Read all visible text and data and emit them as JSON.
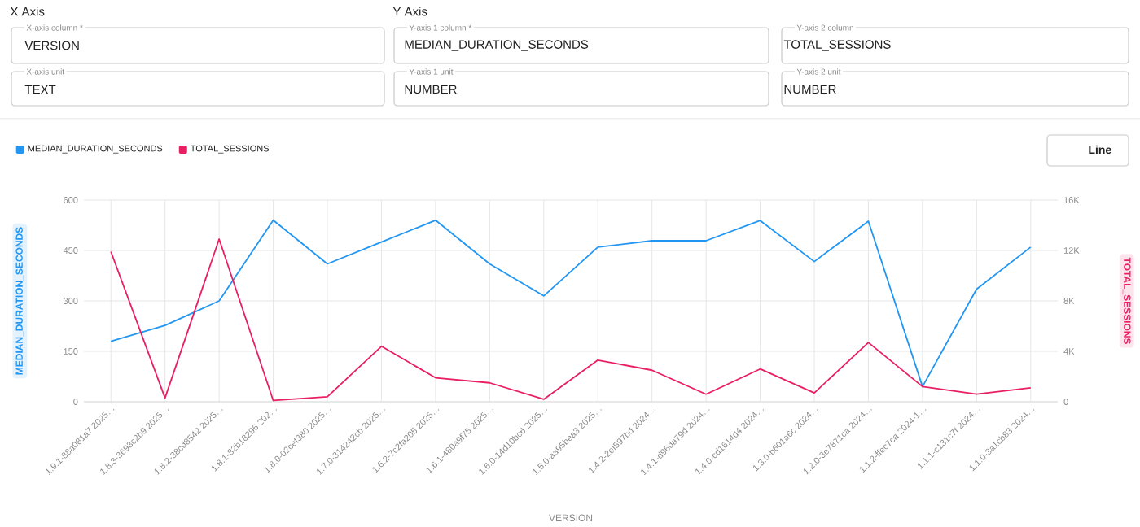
{
  "chart_data": [
    {
      "type": "other",
      "annotations": [
        "X Axis",
        "Y Axis",
        "X-axis column *",
        "VERSION",
        "Y-axis 1 column *",
        "MEDIAN_DURATION_SECONDS",
        "Y-axis 2 column",
        "TOTAL_SESSIONS",
        "X-axis unit",
        "TEXT",
        "Y-axis 1 unit",
        "NUMBER",
        "Y-axis 2 unit",
        "NUMBER",
        "Line"
      ]
    },
    {
      "type": "line",
      "xlabel": "VERSION",
      "ylabel": "MEDIAN_DURATION_SECONDS",
      "y2label": "TOTAL_SESSIONS",
      "categories": [
        "1.9.1-88a081a7 2025…",
        "1.8.3-3693c2b9 2025…",
        "1.8.2-38cd8542 2025…",
        "1.8.1-82b18296 202…",
        "1.8.0-02cef380 2025…",
        "1.7.0-314242cb 2025…",
        "1.6.2-7c2fa205 2025…",
        "1.6.1-480a9f75 2025…",
        "1.6.0-14d10bc6 2025…",
        "1.5.0-aa95bea3 2025…",
        "1.4.2-2ef597bd 2024…",
        "1.4.1-d96da79d 2024…",
        "1.4.0-cd1614d4 2024…",
        "1.3.0-b601a6c 2024…",
        "1.2.0-3e7871ca 2024…",
        "1.1.2-ffec7ca 2024-1…",
        "1.1.1-c131c7f 2024…",
        "1.1.0-3a1cb83 2024…"
      ],
      "series": [
        {
          "name": "MEDIAN_DURATION_SECONDS",
          "color": "#2196f3",
          "values": [
            180,
            227,
            300,
            540,
            410,
            475,
            540,
            410,
            315,
            460,
            479,
            479,
            539,
            417,
            537,
            45,
            335,
            460
          ]
        },
        {
          "name": "TOTAL_SESSIONS",
          "color": "#e91e63",
          "axis": "y2",
          "values": [
            11900,
            300,
            12900,
            100,
            400,
            4400,
            1900,
            1500,
            200,
            3300,
            2500,
            600,
            2600,
            700,
            4700,
            1200,
            600,
            1100
          ]
        }
      ],
      "ylim": [
        0,
        600
      ],
      "yticks": [
        0,
        150,
        300,
        450,
        600
      ],
      "y2lim": [
        0,
        16000
      ],
      "y2ticks": [
        0,
        {
          "value": 4000,
          "label": "4K"
        },
        {
          "value": 8000,
          "label": "8K"
        },
        {
          "value": 12000,
          "label": "12K"
        },
        {
          "value": 16000,
          "label": "16K"
        }
      ],
      "grid": true,
      "legend": "top left",
      "marker": "none",
      "line_style": "solid"
    }
  ]
}
